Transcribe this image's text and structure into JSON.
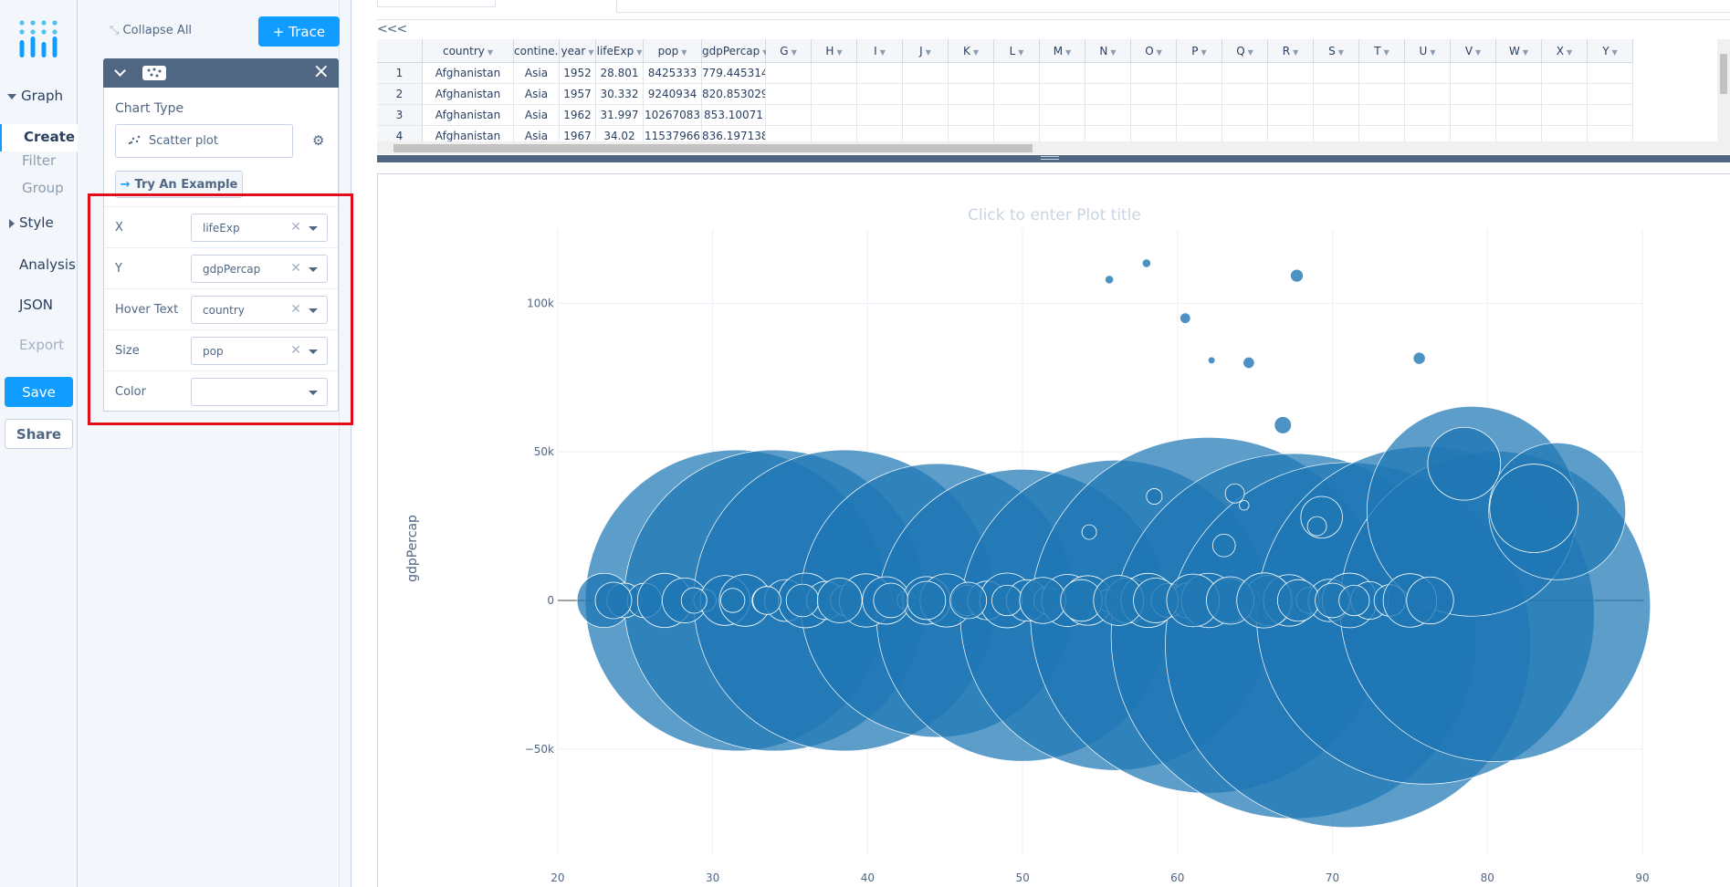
{
  "nav": {
    "graph": "Graph",
    "create": "Create",
    "filter": "Filter",
    "group": "Group",
    "style": "Style",
    "analysis": "Analysis",
    "json": "JSON",
    "export": "Export",
    "save": "Save",
    "share": "Share"
  },
  "panel": {
    "collapse_all": "Collapse All",
    "add_trace": "+ Trace",
    "chart_type_label": "Chart Type",
    "chart_type_value": "Scatter plot",
    "try_example": "Try An Example",
    "fields": [
      {
        "label": "X",
        "value": "lifeExp",
        "clearable": true
      },
      {
        "label": "Y",
        "value": "gdpPercap",
        "clearable": true
      },
      {
        "label": "Hover Text",
        "value": "country",
        "clearable": true
      },
      {
        "label": "Size",
        "value": "pop",
        "clearable": true
      },
      {
        "label": "Color",
        "value": "",
        "clearable": false
      }
    ]
  },
  "grid": {
    "back_arrows": "<<<",
    "columns": [
      "country",
      "contine.",
      "year",
      "lifeExp",
      "pop",
      "gdpPercap",
      "G",
      "H",
      "I",
      "J",
      "K",
      "L",
      "M",
      "N",
      "O",
      "P",
      "Q",
      "R",
      "S",
      "T",
      "U",
      "V",
      "W",
      "X",
      "Y"
    ],
    "rows": [
      [
        "1",
        "Afghanistan",
        "Asia",
        "1952",
        "28.801",
        "8425333",
        "779.4453145"
      ],
      [
        "2",
        "Afghanistan",
        "Asia",
        "1957",
        "30.332",
        "9240934",
        "820.8530296"
      ],
      [
        "3",
        "Afghanistan",
        "Asia",
        "1962",
        "31.997",
        "10267083",
        "853.10071"
      ],
      [
        "4",
        "Afghanistan",
        "Asia",
        "1967",
        "34.02",
        "11537966",
        "836.1971382"
      ]
    ]
  },
  "plot": {
    "title_placeholder": "Click to enter Plot title",
    "ylabel": "gdpPercap",
    "accent": "#1f77b4"
  },
  "chart_data": {
    "type": "scatter",
    "xlabel": "",
    "ylabel": "gdpPercap",
    "xlim": [
      15,
      91
    ],
    "ylim": [
      -90000,
      125000
    ],
    "xticks": [
      "20",
      "30",
      "40",
      "50",
      "60",
      "70",
      "80",
      "90"
    ],
    "yticks": [
      "−50k",
      "0",
      "50k",
      "100k"
    ],
    "marker_size_by": "pop",
    "hover_text_by": "country",
    "series": [
      {
        "x": [
          55.6,
          58.0,
          60.5,
          62.2,
          64.6,
          67.7,
          75.6,
          63.7,
          66.8,
          69.3,
          64.3,
          83.0,
          78.5,
          58.5,
          63.0,
          69.0,
          54.3,
          23.6,
          28.8,
          31.3,
          33.5,
          35.8,
          38.2,
          41.5,
          43.8,
          46.5,
          49.0,
          51.3,
          53.8,
          56.2,
          58.6,
          61.0,
          63.4,
          65.6,
          67.8,
          70.0,
          71.4
        ],
        "y": [
          108000,
          113500,
          95000,
          80800,
          80000,
          109300,
          81500,
          36000,
          59000,
          28000,
          32000,
          31000,
          46000,
          35000,
          18500,
          25000,
          23000,
          0,
          0,
          0,
          0,
          0,
          0,
          0,
          0,
          0,
          0,
          0,
          0,
          0,
          0,
          0,
          0,
          0,
          0,
          0,
          0
        ],
        "size": [
          0.2,
          0.2,
          0.4,
          0.1,
          0.5,
          0.7,
          0.6,
          2.0,
          1.5,
          12.0,
          0.3,
          60.0,
          40.0,
          1.2,
          3.0,
          2.0,
          1.0,
          9.0,
          4.0,
          3.5,
          5.0,
          7.0,
          14.0,
          8.0,
          10.0,
          9.0,
          6.0,
          15.0,
          12.0,
          18.0,
          14.0,
          20.0,
          16.0,
          22.0,
          12.0,
          8.0,
          6.0
        ]
      }
    ]
  }
}
